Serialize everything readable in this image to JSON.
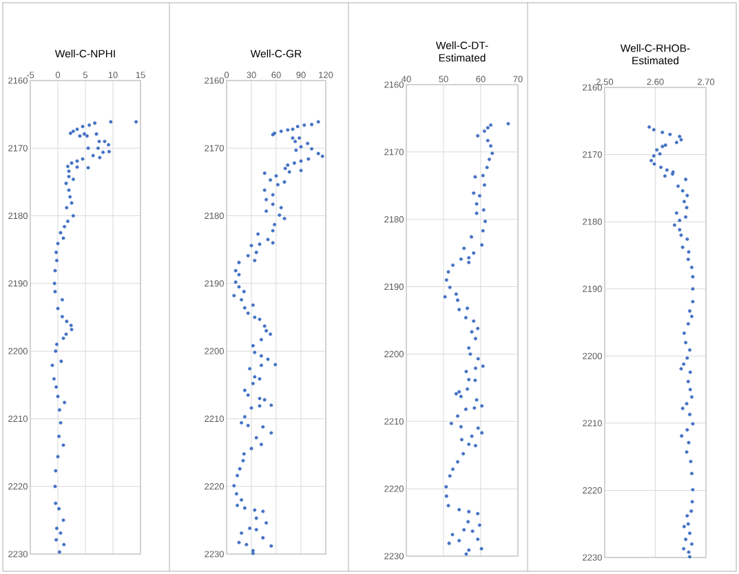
{
  "chart_data": [
    {
      "type": "scatter",
      "title": "Well-C-NPHI",
      "color": "#4472c4",
      "marker": "circle",
      "grid": true,
      "xlim": [
        -5,
        15
      ],
      "xticks": [
        -5,
        0,
        5,
        10,
        15
      ],
      "ylim": [
        2230,
        2160
      ],
      "yticks": [
        2160,
        2170,
        2180,
        2190,
        2200,
        2210,
        2220,
        2230
      ],
      "x": [
        14.2,
        9.6,
        6.7,
        5.7,
        4.5,
        3.5,
        2.8,
        2.3,
        4.0,
        4.8,
        5.3,
        7.0,
        7.5,
        8.5,
        9.2,
        7.3,
        9.3,
        8.2,
        5.5,
        6.4,
        7.6,
        4.5,
        3.5,
        2.5,
        3.5,
        5.5,
        1.8,
        2.0,
        2.0,
        2.8,
        1.5,
        2.0,
        2.2,
        2.5,
        1.6,
        2.8,
        1.8,
        1.2,
        0.5,
        1.0,
        0.0,
        -0.3,
        -0.2,
        -0.5,
        -0.6,
        -0.5,
        0.8,
        0.0,
        0.8,
        1.6,
        2.4,
        2.5,
        1.5,
        1.0,
        -0.2,
        -0.4,
        0.6,
        -1.0,
        -0.7,
        -0.3,
        0.0,
        1.2,
        0.3,
        0.5,
        0.2,
        1.0,
        0.0,
        -0.4,
        -0.5,
        -0.4,
        0.2,
        1.0,
        -0.2,
        0.5,
        -0.3,
        1.1,
        0.3
      ],
      "values": [
        2166.1,
        2166.1,
        2166.3,
        2166.6,
        2166.8,
        2167.2,
        2167.5,
        2167.8,
        2168.2,
        2167.9,
        2168.2,
        2167.9,
        2169.0,
        2169.0,
        2169.5,
        2170.0,
        2170.5,
        2170.6,
        2170.0,
        2171.1,
        2171.4,
        2171.6,
        2171.9,
        2172.2,
        2172.8,
        2172.9,
        2172.7,
        2173.4,
        2174.2,
        2174.6,
        2175.2,
        2176.2,
        2177.2,
        2178.1,
        2178.8,
        2180.0,
        2180.8,
        2181.6,
        2182.5,
        2183.3,
        2184.1,
        2185.4,
        2186.6,
        2188.1,
        2190.0,
        2191.2,
        2192.4,
        2193.7,
        2194.9,
        2195.6,
        2196.2,
        2196.8,
        2197.5,
        2198.1,
        2199.0,
        2200.0,
        2201.5,
        2202.1,
        2204.1,
        2205.3,
        2206.7,
        2207.6,
        2208.7,
        2210.6,
        2212.6,
        2213.9,
        2215.6,
        2217.7,
        2220.0,
        2222.5,
        2223.3,
        2225.0,
        2226.2,
        2226.9,
        2227.9,
        2228.6,
        2229.7
      ]
    },
    {
      "type": "scatter",
      "title": "Well-C-GR",
      "color": "#4472c4",
      "marker": "circle",
      "grid": true,
      "xlim": [
        0,
        120
      ],
      "xticks": [
        0,
        30,
        60,
        90,
        120
      ],
      "ylim": [
        2230,
        2160
      ],
      "yticks": [
        2160,
        2170,
        2180,
        2190,
        2200,
        2210,
        2220,
        2230
      ],
      "x": [
        111,
        103,
        94,
        86,
        80,
        74,
        66,
        58,
        56,
        80,
        88,
        83,
        98,
        90,
        103,
        84,
        111,
        116,
        99,
        90,
        82,
        74,
        71,
        90,
        76,
        46,
        60,
        53,
        70,
        62,
        46,
        56,
        48,
        56,
        66,
        48,
        64,
        70,
        58,
        56,
        38,
        50,
        56,
        40,
        30,
        36,
        26,
        34,
        15,
        11,
        15,
        11,
        15,
        9,
        21,
        18,
        22,
        32,
        26,
        34,
        40,
        46,
        48,
        53,
        42,
        32,
        34,
        42,
        50,
        59,
        42,
        28,
        34,
        40,
        32,
        22,
        26,
        40,
        46,
        54,
        40,
        30,
        22,
        18,
        26,
        44,
        54,
        36,
        42,
        30,
        21,
        20,
        16,
        13,
        9,
        12,
        18,
        13,
        22,
        34,
        44,
        36,
        48,
        28,
        36,
        18,
        44,
        15,
        24,
        54,
        32,
        32
      ],
      "values": [
        2166.1,
        2166.5,
        2166.6,
        2166.8,
        2167.2,
        2167.3,
        2167.5,
        2167.8,
        2168.0,
        2168.5,
        2168.5,
        2169.0,
        2169.3,
        2169.8,
        2170.1,
        2170.3,
        2170.8,
        2171.2,
        2171.6,
        2171.9,
        2172.2,
        2172.5,
        2173.0,
        2173.3,
        2173.5,
        2173.7,
        2174.1,
        2174.7,
        2175.0,
        2175.4,
        2176.2,
        2176.9,
        2177.6,
        2178.3,
        2178.8,
        2179.3,
        2179.9,
        2180.4,
        2181.3,
        2182.2,
        2182.7,
        2183.5,
        2184.0,
        2184.2,
        2184.4,
        2185.4,
        2185.9,
        2186.6,
        2186.9,
        2188.1,
        2188.7,
        2189.8,
        2190.5,
        2191.8,
        2191.2,
        2192.4,
        2193.6,
        2193.2,
        2194.4,
        2195.0,
        2195.3,
        2196.3,
        2197.0,
        2197.5,
        2198.3,
        2199.2,
        2200.2,
        2200.7,
        2201.2,
        2202.0,
        2202.1,
        2202.6,
        2203.8,
        2204.1,
        2204.8,
        2205.8,
        2206.5,
        2207.0,
        2207.2,
        2208.0,
        2208.1,
        2208.4,
        2209.7,
        2210.6,
        2211.0,
        2211.2,
        2212.1,
        2212.8,
        2213.8,
        2214.4,
        2215.2,
        2216.2,
        2217.4,
        2218.4,
        2219.9,
        2221.1,
        2222.0,
        2222.8,
        2223.2,
        2223.5,
        2223.7,
        2224.7,
        2225.4,
        2226.2,
        2226.4,
        2226.9,
        2227.6,
        2228.3,
        2228.6,
        2228.8,
        2229.5,
        2229.9
      ]
    },
    {
      "type": "scatter",
      "title": "Well-C-DT-Estimated",
      "color": "#4472c4",
      "marker": "circle",
      "grid": true,
      "xlim": [
        40,
        70
      ],
      "xticks": [
        40,
        50,
        60,
        70
      ],
      "ylim": [
        2230,
        2160
      ],
      "yticks": [
        2160,
        2170,
        2180,
        2190,
        2200,
        2210,
        2220,
        2230
      ],
      "x": [
        67.4,
        62.7,
        61.9,
        61.0,
        59.2,
        61.9,
        62.7,
        63.1,
        62.3,
        61.7,
        60.6,
        58.5,
        61.0,
        58.1,
        59.7,
        58.9,
        60.8,
        58.9,
        61.2,
        60.6,
        57.5,
        60.3,
        55.5,
        58.1,
        56.8,
        54.7,
        56.8,
        52.5,
        51.3,
        50.8,
        51.7,
        50.4,
        53.4,
        53.8,
        54.2,
        56.4,
        56.0,
        58.1,
        59.2,
        57.6,
        58.6,
        56.8,
        57.2,
        59.3,
        60.6,
        58.6,
        56.1,
        56.8,
        58.5,
        56.4,
        54.2,
        54.7,
        53.4,
        58.9,
        60.3,
        58.3,
        56.0,
        53.8,
        52.1,
        54.7,
        59.3,
        60.3,
        57.6,
        54.9,
        56.8,
        58.6,
        55.3,
        53.8,
        52.5,
        51.7,
        50.7,
        50.8,
        51.3,
        54.2,
        56.8,
        59.2,
        56.6,
        59.7,
        55.5,
        57.8,
        52.4,
        54.2,
        59.2,
        51.5,
        60.2,
        56.8,
        56.1
      ],
      "values": [
        2165.8,
        2166.0,
        2166.4,
        2166.9,
        2167.6,
        2168.3,
        2169.1,
        2170.2,
        2171.1,
        2172.3,
        2173.5,
        2173.7,
        2174.9,
        2176.1,
        2176.5,
        2177.7,
        2178.6,
        2179.1,
        2180.3,
        2181.7,
        2182.6,
        2183.8,
        2184.3,
        2185.0,
        2185.7,
        2185.9,
        2186.4,
        2186.8,
        2187.8,
        2189.0,
        2190.1,
        2191.5,
        2191.1,
        2192.0,
        2193.4,
        2193.2,
        2194.6,
        2195.1,
        2196.2,
        2196.7,
        2197.7,
        2199.1,
        2200.0,
        2200.7,
        2201.8,
        2202.1,
        2202.6,
        2203.8,
        2203.9,
        2205.2,
        2205.6,
        2206.3,
        2205.9,
        2206.8,
        2207.7,
        2208.0,
        2208.2,
        2209.2,
        2210.3,
        2210.8,
        2211.0,
        2211.7,
        2212.2,
        2212.7,
        2213.4,
        2213.6,
        2214.8,
        2216.0,
        2217.1,
        2218.1,
        2219.7,
        2221.1,
        2222.5,
        2223.1,
        2223.4,
        2223.7,
        2224.9,
        2225.4,
        2226.1,
        2226.3,
        2226.8,
        2227.7,
        2227.5,
        2228.1,
        2228.9,
        2229.1,
        2229.7
      ]
    },
    {
      "type": "scatter",
      "title": "Well-C-RHOB-Estimated",
      "color": "#4472c4",
      "marker": "circle",
      "grid": true,
      "xlim": [
        2.5,
        2.7
      ],
      "xticks": [
        {
          "value": 2.5,
          "label": "2.50"
        },
        {
          "value": 2.6,
          "label": "2.60"
        },
        {
          "value": 2.7,
          "label": "2.70"
        }
      ],
      "ylim": [
        2230,
        2160
      ],
      "yticks": [
        2160,
        2170,
        2180,
        2190,
        2200,
        2210,
        2220,
        2230
      ],
      "x": [
        2.588,
        2.597,
        2.614,
        2.629,
        2.648,
        2.651,
        2.642,
        2.62,
        2.614,
        2.603,
        2.609,
        2.597,
        2.592,
        2.598,
        2.611,
        2.623,
        2.635,
        2.634,
        2.619,
        2.66,
        2.645,
        2.654,
        2.663,
        2.657,
        2.662,
        2.642,
        2.66,
        2.648,
        2.638,
        2.648,
        2.651,
        2.663,
        2.654,
        2.666,
        2.665,
        2.672,
        2.674,
        2.674,
        2.674,
        2.668,
        2.672,
        2.665,
        2.657,
        2.66,
        2.668,
        2.663,
        2.656,
        2.651,
        2.669,
        2.665,
        2.669,
        2.672,
        2.662,
        2.654,
        2.668,
        2.674,
        2.663,
        2.652,
        2.666,
        2.662,
        2.67,
        2.672,
        2.674,
        2.673,
        2.671,
        2.663,
        2.665,
        2.657,
        2.668,
        2.66,
        2.672,
        2.656,
        2.666,
        2.668
      ],
      "values": [
        2165.9,
        2166.3,
        2166.7,
        2167.0,
        2167.3,
        2167.8,
        2168.2,
        2168.6,
        2168.8,
        2169.3,
        2169.9,
        2170.2,
        2170.9,
        2171.4,
        2171.9,
        2172.3,
        2172.6,
        2172.9,
        2173.2,
        2173.7,
        2174.7,
        2175.4,
        2176.1,
        2177.0,
        2177.9,
        2178.7,
        2179.3,
        2179.8,
        2180.5,
        2181.2,
        2182.0,
        2182.6,
        2183.8,
        2184.5,
        2185.6,
        2186.8,
        2188.2,
        2190.0,
        2191.9,
        2193.3,
        2194.1,
        2195.2,
        2196.6,
        2198.0,
        2199.1,
        2200.3,
        2201.2,
        2201.9,
        2202.4,
        2203.8,
        2205.0,
        2206.1,
        2207.1,
        2207.8,
        2208.7,
        2210.1,
        2211.0,
        2211.9,
        2212.9,
        2214.3,
        2215.7,
        2217.5,
        2219.9,
        2221.7,
        2223.1,
        2223.8,
        2225.0,
        2225.4,
        2226.4,
        2227.3,
        2228.0,
        2228.7,
        2229.2,
        2229.9
      ]
    }
  ]
}
